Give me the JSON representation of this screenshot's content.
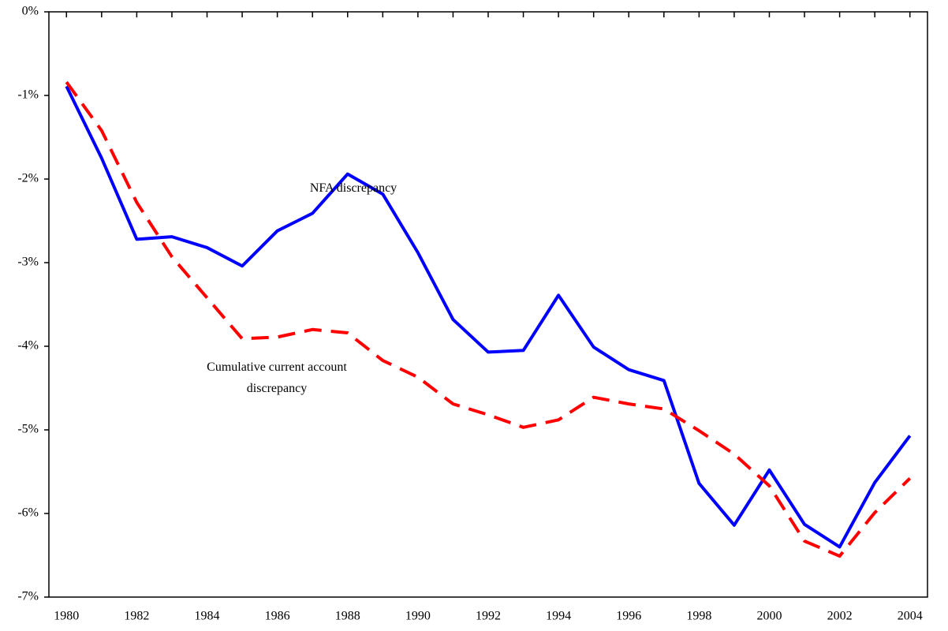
{
  "chart_data": {
    "type": "line",
    "x": [
      1980,
      1981,
      1982,
      1983,
      1984,
      1985,
      1986,
      1987,
      1988,
      1989,
      1990,
      1991,
      1992,
      1993,
      1994,
      1995,
      1996,
      1997,
      1998,
      1999,
      2000,
      2001,
      2002,
      2003,
      2004
    ],
    "series": [
      {
        "name": "NFA discrepancy",
        "color": "#0000ff",
        "dashed": false,
        "values": [
          -0.89,
          -1.75,
          -2.72,
          -2.69,
          -2.82,
          -3.04,
          -2.62,
          -2.41,
          -1.94,
          -2.18,
          -2.88,
          -3.68,
          -4.07,
          -4.05,
          -3.39,
          -4.01,
          -4.28,
          -4.41,
          -5.64,
          -6.14,
          -5.48,
          -6.13,
          -6.4,
          -5.63,
          -5.07
        ]
      },
      {
        "name": "Cumulative current account discrepancy",
        "color": "#ff0000",
        "dashed": true,
        "values": [
          -0.84,
          -1.42,
          -2.28,
          -2.93,
          -3.42,
          -3.91,
          -3.89,
          -3.8,
          -3.84,
          -4.17,
          -4.37,
          -4.69,
          -4.82,
          -4.97,
          -4.88,
          -4.61,
          -4.69,
          -4.75,
          -5.01,
          -5.29,
          -5.67,
          -6.33,
          -6.51,
          -5.99,
          -5.58
        ]
      }
    ],
    "xlim": [
      1979.5,
      2004.5
    ],
    "xticks": [
      1980,
      1982,
      1984,
      1986,
      1988,
      1990,
      1992,
      1994,
      1996,
      1998,
      2000,
      2002,
      2004
    ],
    "ylim": [
      -7,
      0
    ],
    "yticks": [
      {
        "value": 0,
        "label": "0%"
      },
      {
        "value": -1,
        "label": "-1%"
      },
      {
        "value": -2,
        "label": "-2%"
      },
      {
        "value": -3,
        "label": "-3%"
      },
      {
        "value": -4,
        "label": "-4%"
      },
      {
        "value": -5,
        "label": "-5%"
      },
      {
        "value": -6,
        "label": "-6%"
      },
      {
        "value": -7,
        "label": "-7%"
      }
    ],
    "grid": false
  }
}
